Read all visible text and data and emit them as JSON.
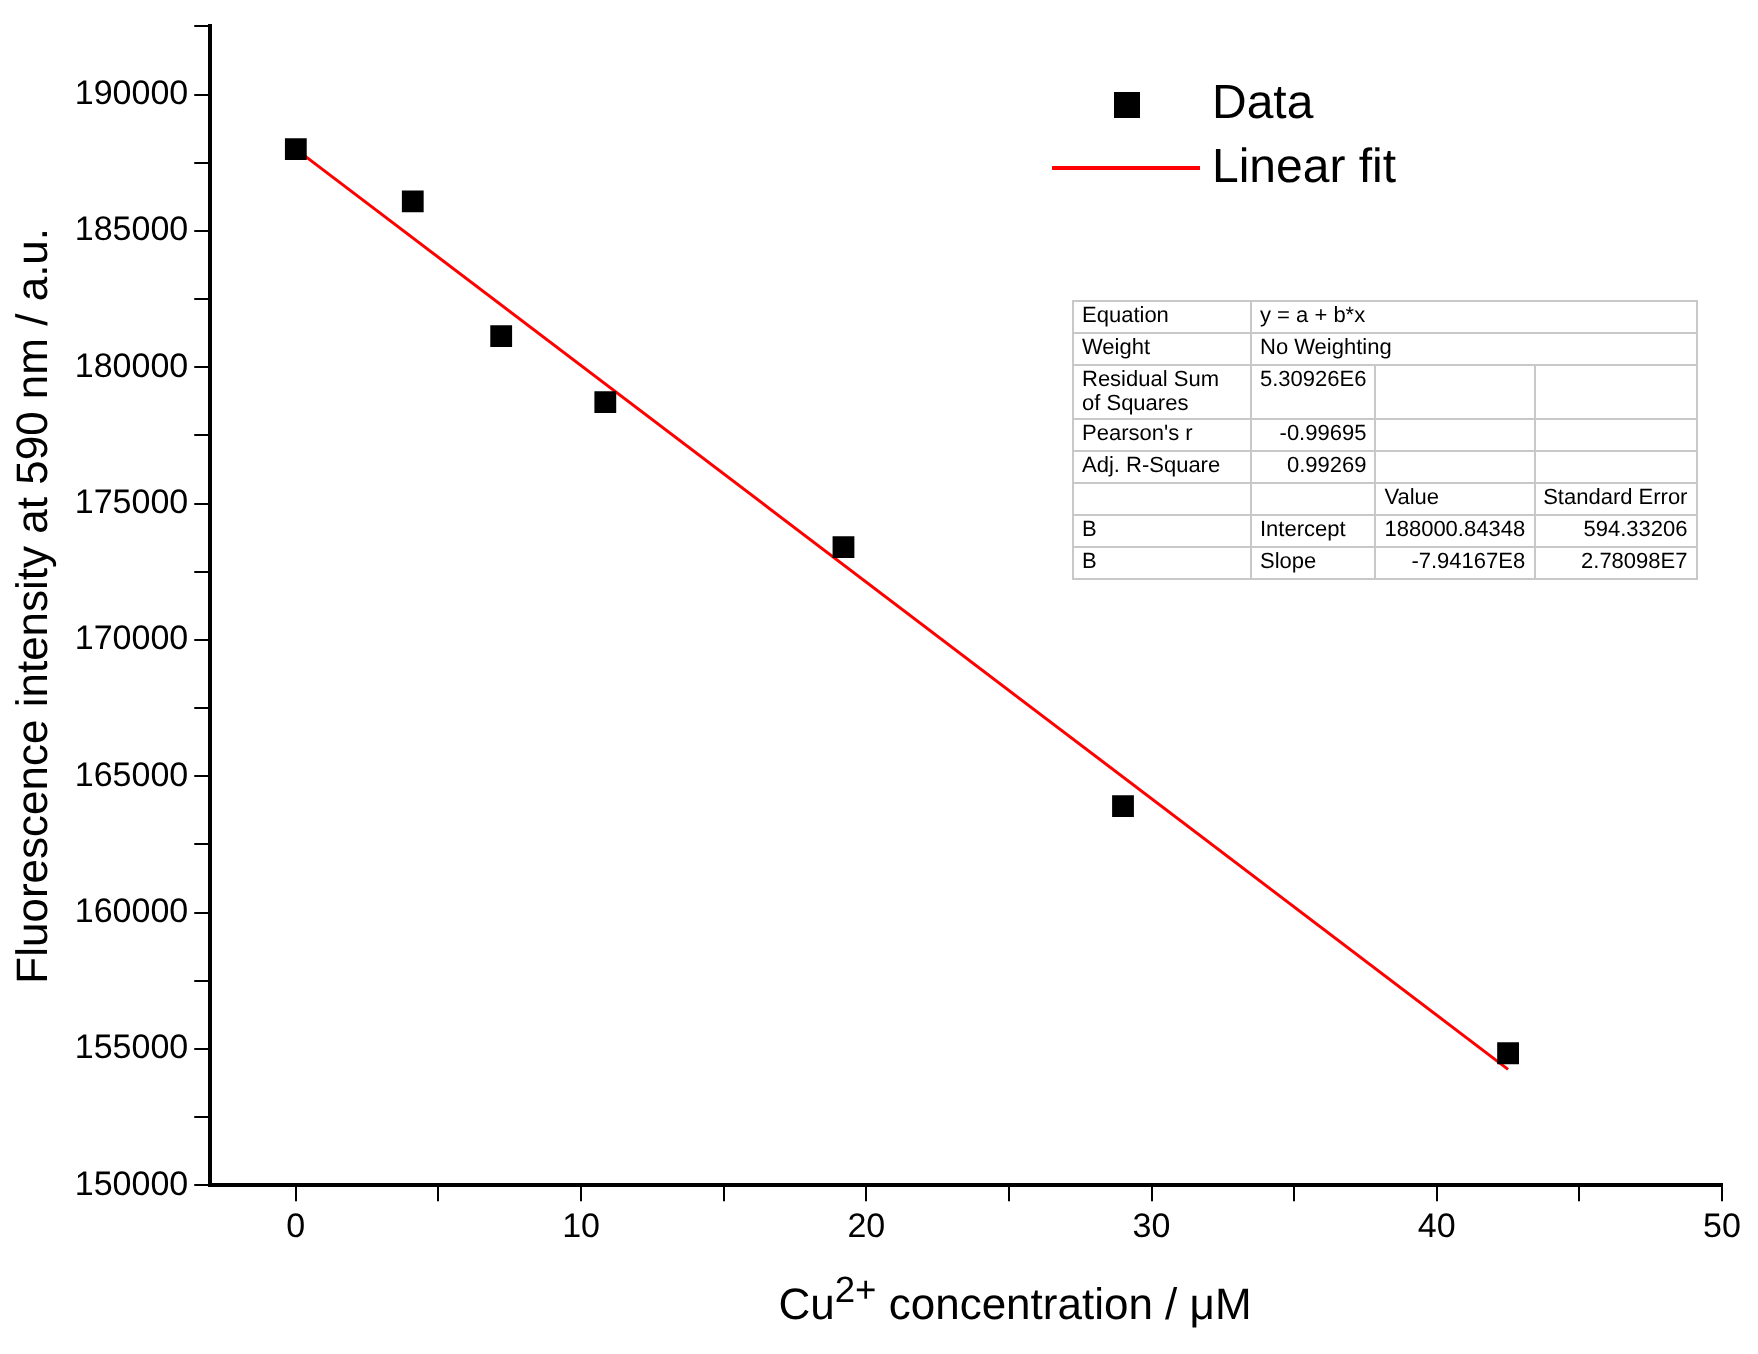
{
  "chart_data": {
    "type": "scatter",
    "xlabel": "Cu$^{2+}$ concentration / μM",
    "ylabel": "Fluorescence intensity at 590 nm / a.u.",
    "xlim": [
      -3,
      50
    ],
    "xticks": [
      0,
      {
        "value": 5,
        "label": null
      },
      10,
      {
        "value": 15,
        "label": null
      },
      20,
      {
        "value": 25,
        "label": null
      },
      30,
      {
        "value": 35,
        "label": null
      },
      40,
      {
        "value": 45,
        "label": null
      },
      50
    ],
    "ylim": [
      150000,
      192500
    ],
    "yticks": [
      150000,
      {
        "value": 152500,
        "label": null
      },
      155000,
      {
        "value": 157500,
        "label": null
      },
      160000,
      {
        "value": 162500,
        "label": null
      },
      165000,
      {
        "value": 167500,
        "label": null
      },
      170000,
      {
        "value": 172500,
        "label": null
      },
      175000,
      {
        "value": 177500,
        "label": null
      },
      180000,
      {
        "value": 182500,
        "label": null
      },
      185000,
      {
        "value": 187500,
        "label": null
      },
      190000,
      {
        "value": 192500,
        "label": null
      }
    ],
    "series": [
      {
        "name": "Data",
        "type": "scatter",
        "color": "#000000",
        "marker": "square",
        "x": [
          0,
          4.1,
          7.2,
          10.85,
          19.2,
          29.0,
          42.5
        ],
        "values": [
          188000,
          186080,
          181140,
          178720,
          173400,
          163900,
          154840
        ]
      },
      {
        "name": "Linear fit",
        "type": "line",
        "color": "#ff0000",
        "marker": "none",
        "x": [
          0,
          42.5
        ],
        "values": [
          188000,
          154250
        ]
      }
    ],
    "legend": "top right",
    "grid": false,
    "annotations": [
      "Equation",
      "y = a + b*x",
      "Weight",
      "No Weighting",
      "Residual Sum of Squares",
      "5.30926E6",
      "Pearson's r",
      "-0.99695",
      "Adj. R-Square",
      "0.99269",
      "Value",
      "Standard Error",
      "B",
      "Intercept",
      "188000.84348",
      "594.33206",
      "B",
      "Slope",
      "-7.94167E8",
      "2.78098E7"
    ]
  }
}
